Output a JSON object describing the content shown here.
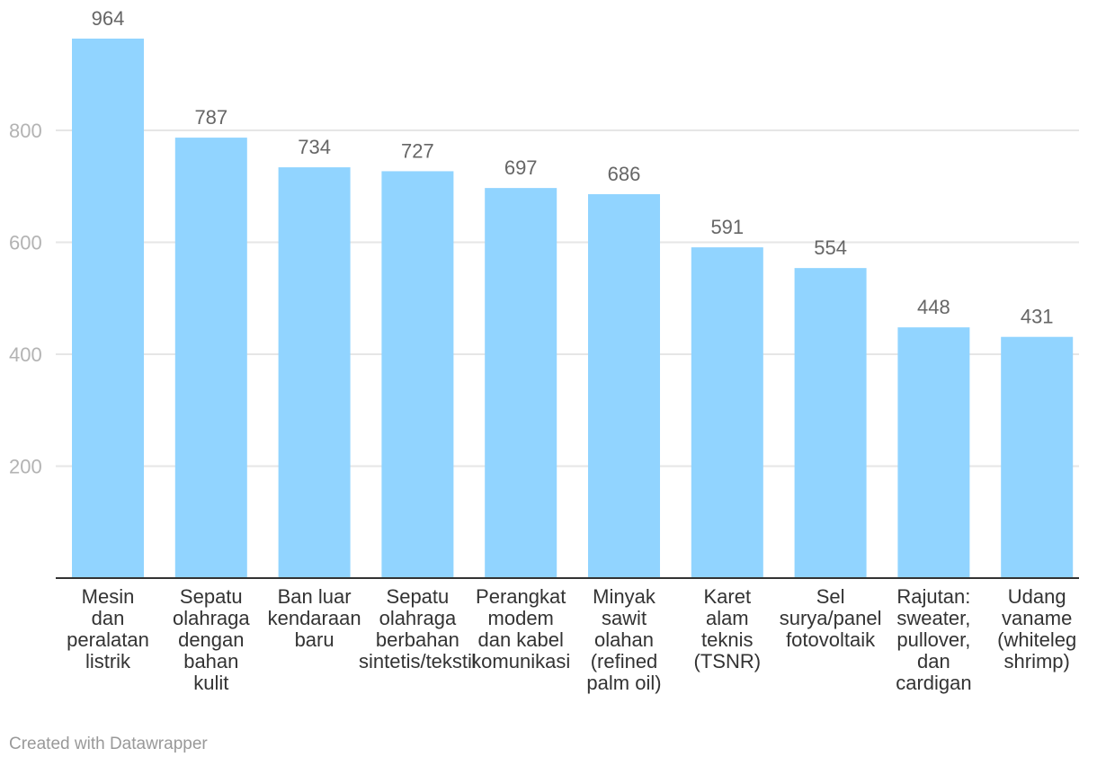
{
  "chart_data": {
    "type": "bar",
    "title": "",
    "xlabel": "",
    "ylabel": "",
    "ylim": [
      0,
      1000
    ],
    "yticks": [
      200,
      400,
      600,
      800
    ],
    "grid": true,
    "bar_color": "#91d4ff",
    "categories": [
      [
        "Mesin",
        "dan",
        "peralatan",
        "listrik"
      ],
      [
        "Sepatu",
        "olahraga",
        "dengan",
        "bahan",
        "kulit"
      ],
      [
        "Ban luar",
        "kendaraan",
        "baru"
      ],
      [
        "Sepatu",
        "olahraga",
        "berbahan",
        "sintetis/tekstil"
      ],
      [
        "Perangkat",
        "modem",
        "dan kabel",
        "komunikasi"
      ],
      [
        "Minyak",
        "sawit",
        "olahan",
        "(refined",
        "palm oil)"
      ],
      [
        "Karet",
        "alam",
        "teknis",
        "(TSNR)"
      ],
      [
        "Sel",
        "surya/panel",
        "fotovoltaik"
      ],
      [
        "Rajutan:",
        "sweater,",
        "pullover,",
        "dan",
        "cardigan"
      ],
      [
        "Udang",
        "vaname",
        "(whiteleg",
        "shrimp)"
      ]
    ],
    "values": [
      964,
      787,
      734,
      727,
      697,
      686,
      591,
      554,
      448,
      431
    ]
  },
  "credit": "Created with Datawrapper"
}
